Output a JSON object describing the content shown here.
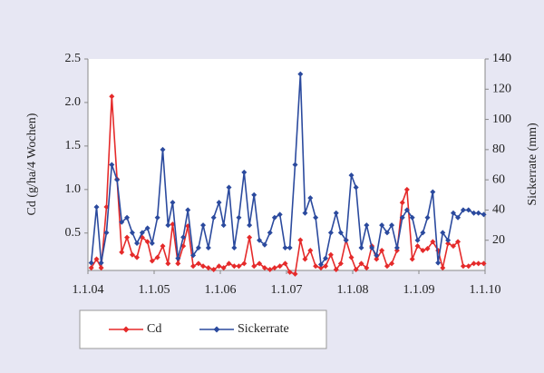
{
  "chart_data": {
    "type": "line",
    "y_label": "Cd (g/ha/4 Wochen)",
    "y2_label": "Sickerrate (mm)",
    "x": [
      2004.05,
      2004.13,
      2004.2,
      2004.28,
      2004.36,
      2004.44,
      2004.51,
      2004.59,
      2004.67,
      2004.74,
      2004.82,
      2004.9,
      2004.97,
      2005.05,
      2005.13,
      2005.21,
      2005.28,
      2005.36,
      2005.44,
      2005.51,
      2005.59,
      2005.67,
      2005.74,
      2005.82,
      2005.9,
      2005.98,
      2006.05,
      2006.13,
      2006.21,
      2006.28,
      2006.36,
      2006.44,
      2006.51,
      2006.59,
      2006.67,
      2006.75,
      2006.82,
      2006.9,
      2006.98,
      2007.05,
      2007.13,
      2007.21,
      2007.28,
      2007.36,
      2007.44,
      2007.52,
      2007.59,
      2007.67,
      2007.75,
      2007.82,
      2007.9,
      2007.98,
      2008.05,
      2008.13,
      2008.21,
      2008.29,
      2008.36,
      2008.44,
      2008.52,
      2008.59,
      2008.67,
      2008.75,
      2008.82,
      2008.9,
      2008.98,
      2009.06,
      2009.13,
      2009.21,
      2009.29,
      2009.36,
      2009.44,
      2009.52,
      2009.59,
      2009.67,
      2009.75,
      2009.83,
      2009.9,
      2009.98
    ],
    "xlim": [
      2004,
      2010
    ],
    "xticks": [
      {
        "value": 2004,
        "label": "1.1.04"
      },
      {
        "value": 2005,
        "label": "1.1.05"
      },
      {
        "value": 2006,
        "label": "1.1.06"
      },
      {
        "value": 2007,
        "label": "1.1.07"
      },
      {
        "value": 2008,
        "label": "1.1.08"
      },
      {
        "value": 2009,
        "label": "1.1.09"
      },
      {
        "value": 2010,
        "label": "1.1.10"
      }
    ],
    "ylim": [
      0.07,
      2.5
    ],
    "yticks": [
      0.5,
      {
        "value": 1,
        "label": "1.0"
      },
      1.5,
      {
        "value": 2,
        "label": "2.0"
      },
      2.5
    ],
    "y2lim": [
      0,
      140
    ],
    "y2ticks": [
      20,
      40,
      60,
      80,
      100,
      120,
      140
    ],
    "grid": false,
    "legend": "bottom",
    "series": [
      {
        "name": "Cd",
        "color": "#e52a2a",
        "axis": "y",
        "values": [
          0.1,
          0.2,
          0.1,
          0.8,
          2.07,
          1.12,
          0.28,
          0.45,
          0.25,
          0.22,
          0.45,
          0.4,
          0.18,
          0.22,
          0.35,
          0.15,
          0.6,
          0.15,
          0.35,
          0.58,
          0.12,
          0.15,
          0.12,
          0.1,
          0.08,
          0.12,
          0.1,
          0.15,
          0.12,
          0.12,
          0.15,
          0.45,
          0.12,
          0.15,
          0.1,
          0.08,
          0.1,
          0.12,
          0.15,
          0.05,
          0.03,
          0.42,
          0.2,
          0.3,
          0.12,
          0.1,
          0.12,
          0.25,
          0.08,
          0.15,
          0.42,
          0.22,
          0.08,
          0.15,
          0.1,
          0.35,
          0.2,
          0.3,
          0.12,
          0.15,
          0.3,
          0.85,
          1.0,
          0.2,
          0.35,
          0.3,
          0.32,
          0.4,
          0.3,
          0.1,
          0.38,
          0.35,
          0.4,
          0.12,
          0.12,
          0.15,
          0.15,
          0.15
        ]
      },
      {
        "name": "Sickerrate",
        "color": "#2b4a9e",
        "axis": "y2",
        "values": [
          5,
          42,
          5,
          25,
          70,
          60,
          32,
          35,
          25,
          18,
          25,
          28,
          18,
          35,
          80,
          30,
          45,
          8,
          22,
          40,
          10,
          15,
          30,
          15,
          35,
          45,
          30,
          55,
          15,
          35,
          65,
          30,
          50,
          20,
          17,
          25,
          35,
          37,
          15,
          15,
          70,
          130,
          38,
          48,
          35,
          4,
          8,
          25,
          38,
          25,
          20,
          63,
          55,
          15,
          30,
          15,
          10,
          30,
          25,
          30,
          15,
          35,
          40,
          35,
          20,
          25,
          35,
          52,
          5,
          25,
          20,
          38,
          35,
          40,
          40,
          38,
          38,
          37
        ]
      }
    ]
  }
}
